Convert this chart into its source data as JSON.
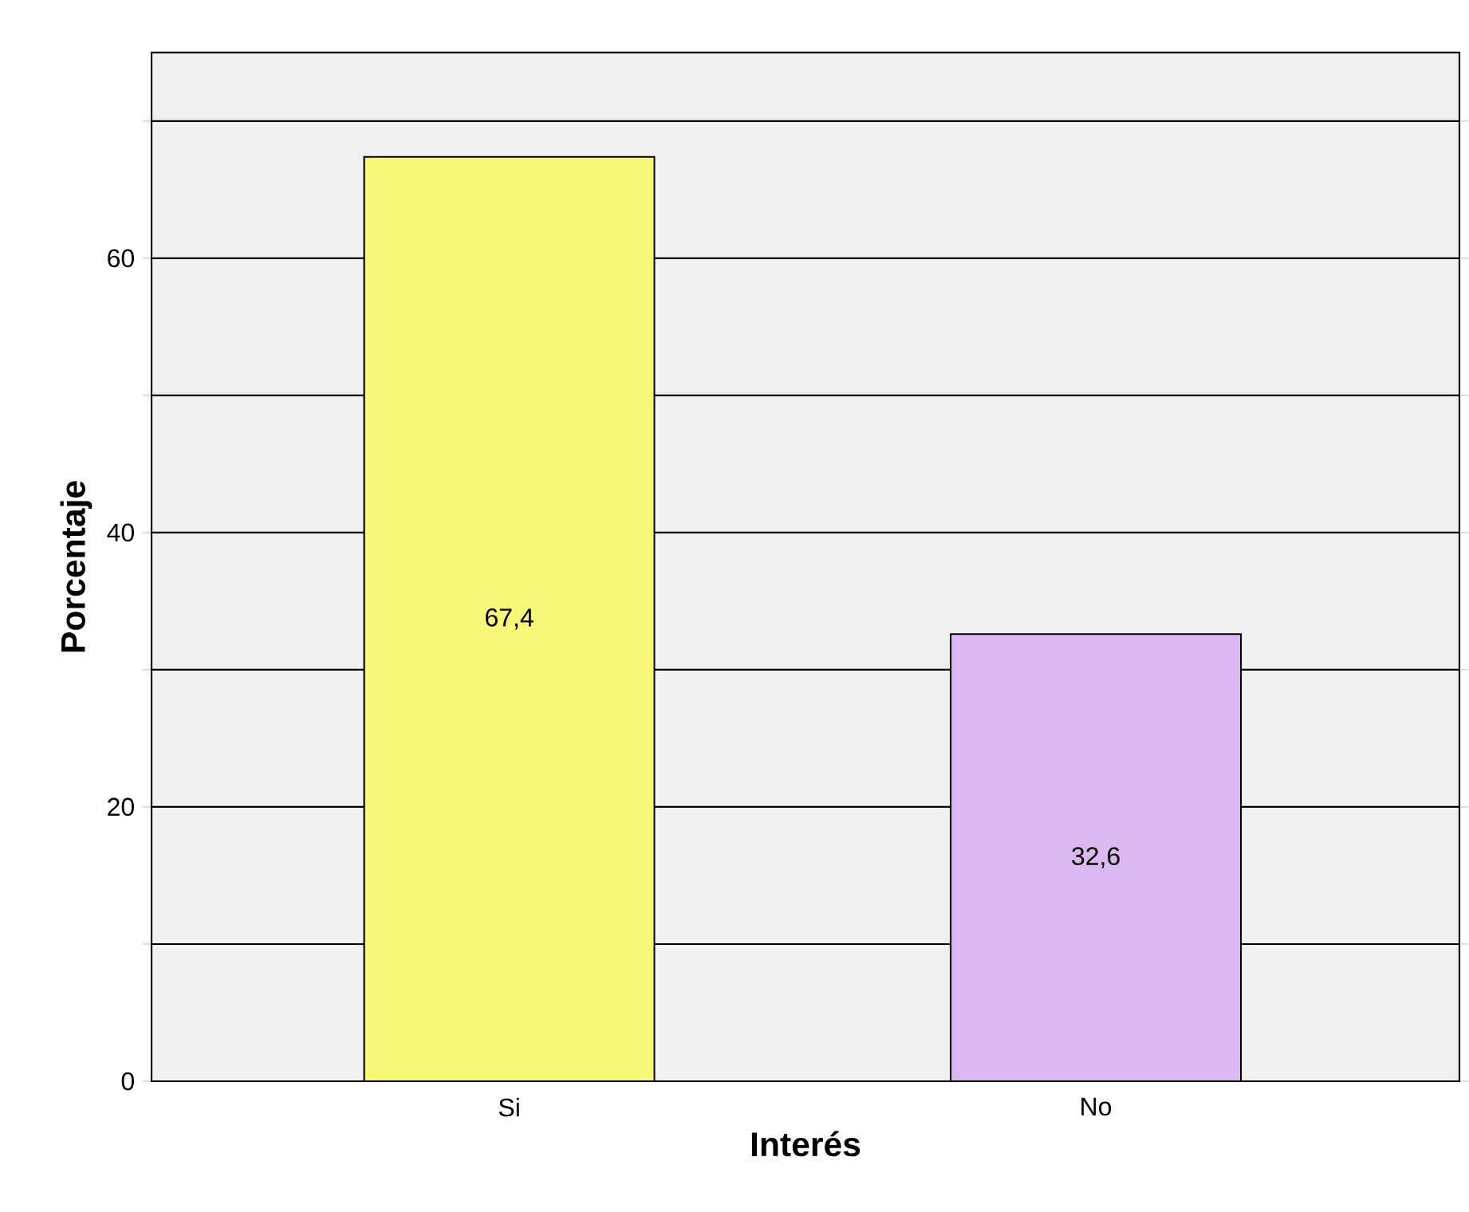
{
  "chart_data": {
    "type": "bar",
    "xlabel": "Interés",
    "ylabel": "Porcentaje",
    "categories": [
      "Si",
      "No"
    ],
    "values": [
      67.4,
      32.6
    ],
    "colors": [
      "#f8f878",
      "#dcb8f0"
    ],
    "value_labels": [
      "67,4",
      "32,6"
    ],
    "ylim": [
      0,
      75
    ],
    "yticks": [
      0,
      {
        "value": 10,
        "label": null
      },
      20,
      {
        "value": 30,
        "label": null
      },
      40,
      {
        "value": 50,
        "label": null
      },
      60,
      {
        "value": 70,
        "label": null
      }
    ],
    "grid": "y"
  }
}
